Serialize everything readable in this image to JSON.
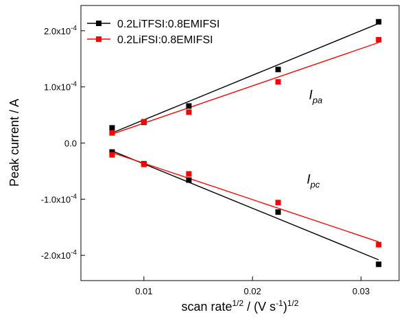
{
  "chart_data": {
    "type": "scatter",
    "xlabel": {
      "base": "scan rate",
      "sup1": "1/2",
      "mid": " / (V s",
      "sup2": "-1",
      "end": ")",
      "sup3": "1/2"
    },
    "ylabel": "Peak current / A",
    "xlim": [
      0.0042,
      0.0335
    ],
    "ylim": [
      -0.000245,
      0.000245
    ],
    "x_ticks": [
      {
        "value": 0.01,
        "label": "0.01"
      },
      {
        "value": 0.02,
        "label": "0.02"
      },
      {
        "value": 0.03,
        "label": "0.03"
      }
    ],
    "y_ticks": [
      {
        "value": -0.0002,
        "mant": "-2.0x10",
        "exp": "-4"
      },
      {
        "value": -0.0001,
        "mant": "-1.0x10",
        "exp": "-4"
      },
      {
        "value": 0,
        "mant": "0.0",
        "exp": ""
      },
      {
        "value": 0.0001,
        "mant": "1.0x10",
        "exp": "-4"
      },
      {
        "value": 0.0002,
        "mant": "2.0x10",
        "exp": "-4"
      }
    ],
    "series": [
      {
        "name": "0.2LiTFSI:0.8EMIFSI",
        "color": "#000000",
        "x": [
          0.00707,
          0.01,
          0.01414,
          0.02236,
          0.03162
        ],
        "anodic": [
          2.7e-05,
          3.7e-05,
          6.6e-05,
          0.000131,
          0.000216
        ],
        "cathodic": [
          -1.6e-05,
          -3.7e-05,
          -6.6e-05,
          -0.000123,
          -0.000216
        ],
        "fit_anodic": [
          [
            0.00707,
            1.8e-05
          ],
          [
            0.03162,
            0.000213
          ]
        ],
        "fit_cathodic": [
          [
            0.00707,
            -1.4e-05
          ],
          [
            0.03162,
            -0.000208
          ]
        ]
      },
      {
        "name": "0.2LiFSI:0.8EMIFSI",
        "color": "#ff0000",
        "x": [
          0.00707,
          0.01,
          0.01414,
          0.02236,
          0.03162
        ],
        "anodic": [
          1.8e-05,
          3.8e-05,
          5.5e-05,
          0.000109,
          0.000184
        ],
        "cathodic": [
          -2.1e-05,
          -3.8e-05,
          -5.5e-05,
          -0.000106,
          -0.000181
        ],
        "fit_anodic": [
          [
            0.00707,
            1.6e-05
          ],
          [
            0.03162,
            0.000179
          ]
        ],
        "fit_cathodic": [
          [
            0.00707,
            -1.7e-05
          ],
          [
            0.03162,
            -0.000176
          ]
        ]
      }
    ],
    "annotations": [
      {
        "base": "I",
        "sub": "pa",
        "x": 0.0252,
        "y": 7.8e-05
      },
      {
        "base": "I",
        "sub": "pc",
        "x": 0.025,
        "y": -7.2e-05
      }
    ],
    "legend_position": "top-left",
    "grid": false
  }
}
